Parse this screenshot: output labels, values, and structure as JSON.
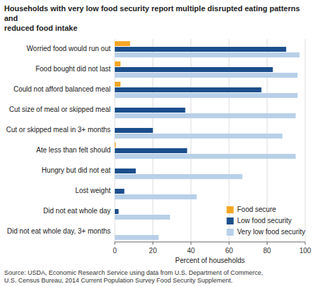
{
  "chart_data": {
    "type": "bar",
    "orientation": "horizontal",
    "title": "Households with very low food security report multiple disrupted eating patterns and\nreduced food intake",
    "source": "Source: USDA, Economic Research Service using data from U.S. Department of Commerce,\nU.S. Census Bureau, 2014 Current Population Survey Food Security Supplement.",
    "x_label": "Percent of households",
    "categories": [
      "Worried food would run out",
      "Food bought did not last",
      "Could not afford balanced meal",
      "Cut size of meal or skipped meal",
      "Cut or skipped meal in 3+ months",
      "Ate less than felt should",
      "Hungry but did not eat",
      "Lost weight",
      "Did not eat whole day",
      "Did not eat whole day, 3+ months"
    ],
    "series": [
      {
        "name": "Food secure",
        "color": "#F5A623",
        "values": [
          8,
          3,
          3,
          0,
          0,
          0.5,
          0,
          0,
          0,
          0
        ]
      },
      {
        "name": "Low food security",
        "color": "#1B4F8C",
        "values": [
          90,
          83,
          77,
          37,
          20,
          38,
          11,
          5,
          2,
          0
        ]
      },
      {
        "name": "Very low food security",
        "color": "#B8D0E8",
        "values": [
          97,
          96,
          96,
          95,
          88,
          95,
          67,
          43,
          29,
          23
        ]
      }
    ],
    "xlim": [
      0,
      100
    ],
    "xticks": [
      0,
      20,
      40,
      60,
      80,
      100
    ],
    "grid": true,
    "legend": "lower right"
  }
}
